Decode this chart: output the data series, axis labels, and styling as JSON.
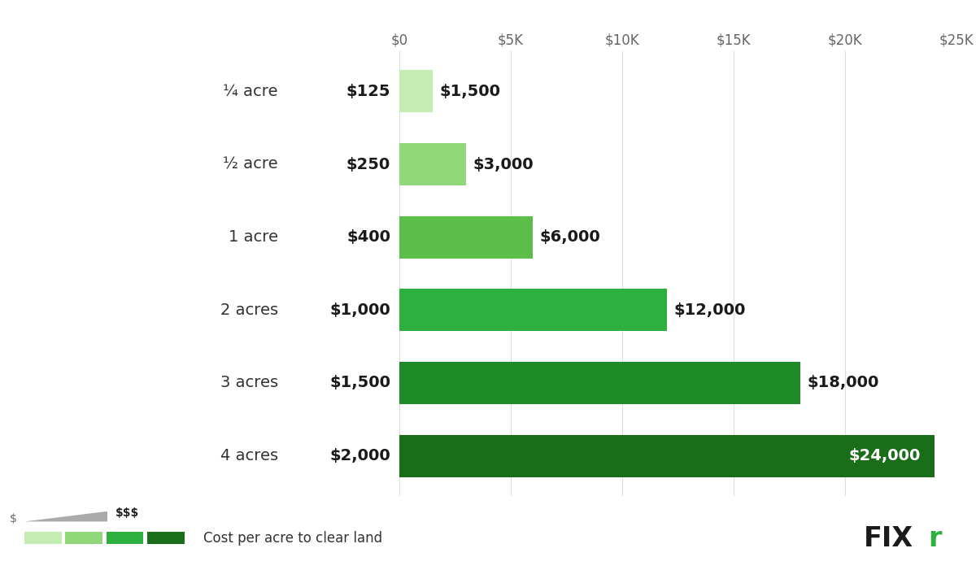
{
  "categories": [
    "¼ acre",
    "½ acre",
    "1 acre",
    "2 acres",
    "3 acres",
    "4 acres"
  ],
  "bar_min": [
    125,
    250,
    400,
    1000,
    1500,
    2000
  ],
  "bar_max": [
    1500,
    3000,
    6000,
    12000,
    18000,
    24000
  ],
  "bar_colors": [
    "#c5ecb2",
    "#90d87a",
    "#5bbf4a",
    "#2db040",
    "#1f8a28",
    "#1a6e1a"
  ],
  "label_min": [
    "$125",
    "$250",
    "$400",
    "$1,000",
    "$1,500",
    "$2,000"
  ],
  "label_max": [
    "$1,500",
    "$3,000",
    "$6,000",
    "$12,000",
    "$18,000",
    "$24,000"
  ],
  "x_ticks": [
    0,
    5000,
    10000,
    15000,
    20000,
    25000
  ],
  "x_tick_labels": [
    "$0",
    "$5K",
    "$10K",
    "$15K",
    "$20K",
    "$25K"
  ],
  "x_max": 25000,
  "background_color": "#ffffff",
  "bar_height": 0.58,
  "legend_label": "Cost per acre to clear land",
  "legend_colors": [
    "#c5ecb2",
    "#90d87a",
    "#2db040",
    "#1a6e1a"
  ],
  "grid_color": "#dddddd",
  "label_color": "#1a1a1a",
  "category_fontsize": 14,
  "value_fontsize": 14,
  "tick_fontsize": 12,
  "fixr_color": "#2db040"
}
